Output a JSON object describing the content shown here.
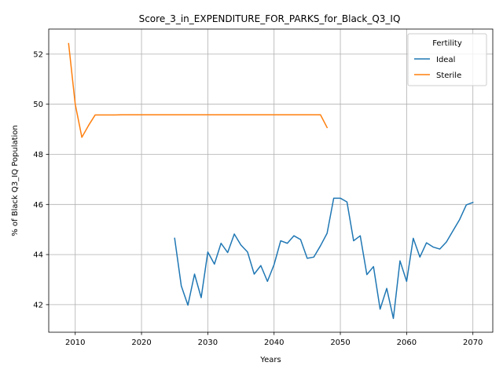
{
  "chart_data": {
    "type": "line",
    "title": "Score_3_in_EXPENDITURE_FOR_PARKS_for_Black_Q3_IQ",
    "xlabel": "Years",
    "ylabel": "% of Black Q3_IQ Population",
    "xlim": [
      2006,
      2073
    ],
    "ylim": [
      40.9,
      53.0
    ],
    "xticks": [
      2010,
      2020,
      2030,
      2040,
      2050,
      2060,
      2070
    ],
    "yticks": [
      42,
      44,
      46,
      48,
      50,
      52
    ],
    "grid": true,
    "legend": {
      "title": "Fertility",
      "placement": "top-right"
    },
    "series": [
      {
        "name": "Ideal",
        "color": "#1f77b4",
        "x": [
          2025,
          2026,
          2027,
          2028,
          2029,
          2030,
          2031,
          2032,
          2033,
          2034,
          2035,
          2036,
          2037,
          2038,
          2039,
          2040,
          2041,
          2042,
          2043,
          2044,
          2045,
          2046,
          2047,
          2048,
          2049,
          2050,
          2051,
          2052,
          2053,
          2054,
          2055,
          2056,
          2057,
          2058,
          2059,
          2060,
          2061,
          2062,
          2063,
          2064,
          2065,
          2066,
          2067,
          2068,
          2069,
          2070
        ],
        "y": [
          44.65,
          42.75,
          41.98,
          43.22,
          42.28,
          44.1,
          43.62,
          44.45,
          44.08,
          44.82,
          44.38,
          44.1,
          43.22,
          43.56,
          42.93,
          43.6,
          44.55,
          44.45,
          44.75,
          44.6,
          43.85,
          43.9,
          44.35,
          44.85,
          46.25,
          46.25,
          46.1,
          44.55,
          44.75,
          43.2,
          43.52,
          41.82,
          42.65,
          41.45,
          43.75,
          42.93,
          44.65,
          43.9,
          44.47,
          44.3,
          44.22,
          44.5,
          44.95,
          45.4,
          45.98,
          46.08
        ]
      },
      {
        "name": "Sterile",
        "color": "#ff7f0e",
        "x": [
          2009,
          2010,
          2011,
          2012,
          2013,
          2014,
          2015,
          2016,
          2017,
          2018,
          2019,
          2020,
          2021,
          2022,
          2023,
          2024,
          2025,
          2026,
          2027,
          2028,
          2029,
          2030,
          2031,
          2032,
          2033,
          2034,
          2035,
          2036,
          2037,
          2038,
          2039,
          2040,
          2041,
          2042,
          2043,
          2044,
          2045,
          2046,
          2047,
          2048
        ],
        "y": [
          52.42,
          50.0,
          48.68,
          49.15,
          49.57,
          49.57,
          49.57,
          49.57,
          49.58,
          49.58,
          49.58,
          49.58,
          49.58,
          49.58,
          49.58,
          49.58,
          49.58,
          49.58,
          49.58,
          49.58,
          49.58,
          49.58,
          49.58,
          49.58,
          49.58,
          49.58,
          49.58,
          49.58,
          49.58,
          49.58,
          49.58,
          49.58,
          49.58,
          49.58,
          49.58,
          49.58,
          49.58,
          49.58,
          49.58,
          49.07
        ]
      }
    ]
  }
}
